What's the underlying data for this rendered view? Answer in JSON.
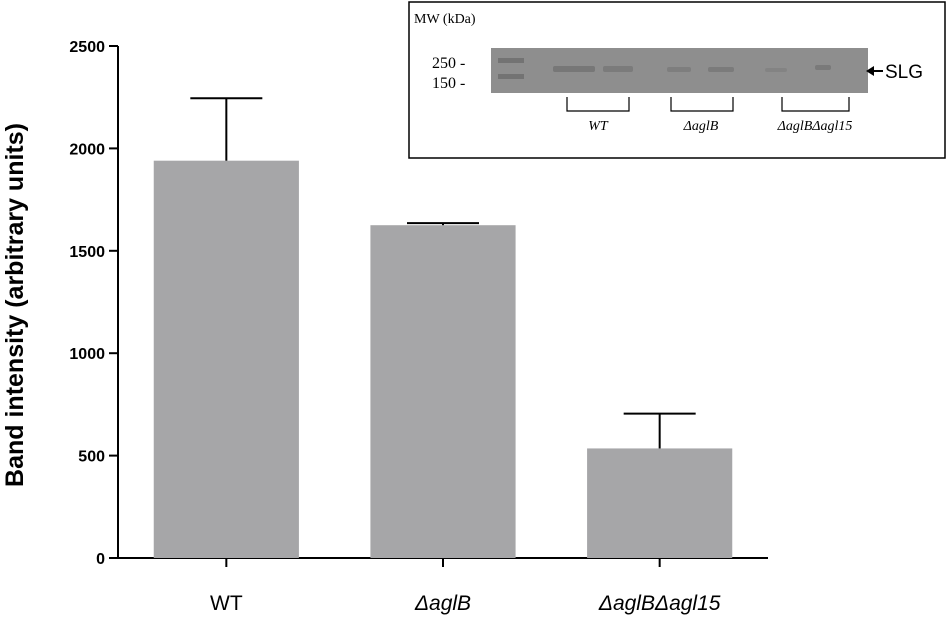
{
  "chart_data": {
    "type": "bar",
    "categories": [
      "WT",
      "ΔaglB",
      "ΔaglBΔagl15"
    ],
    "category_italic": [
      false,
      true,
      true
    ],
    "values": [
      1940,
      1625,
      535
    ],
    "error_plus": [
      305,
      10,
      170
    ],
    "title": "",
    "xlabel": "",
    "ylabel": "Band intensity (arbitrary units)",
    "ylim": [
      0,
      2500
    ],
    "yticks": [
      0,
      500,
      1000,
      1500,
      2000,
      2500
    ],
    "ytick_labels": [
      "0",
      "500",
      "1000",
      "1500",
      "2000",
      "2500"
    ],
    "bar_color": "#a6a6a8",
    "grid": false,
    "legend": "none"
  },
  "inset": {
    "mw_label": "MW (kDa)",
    "markers": [
      "250 -",
      "150 -"
    ],
    "band_label": "SLG",
    "lane_groups": [
      "WT",
      "ΔaglB",
      "ΔaglBΔagl15"
    ],
    "blot_color": "#8e8e8e"
  }
}
